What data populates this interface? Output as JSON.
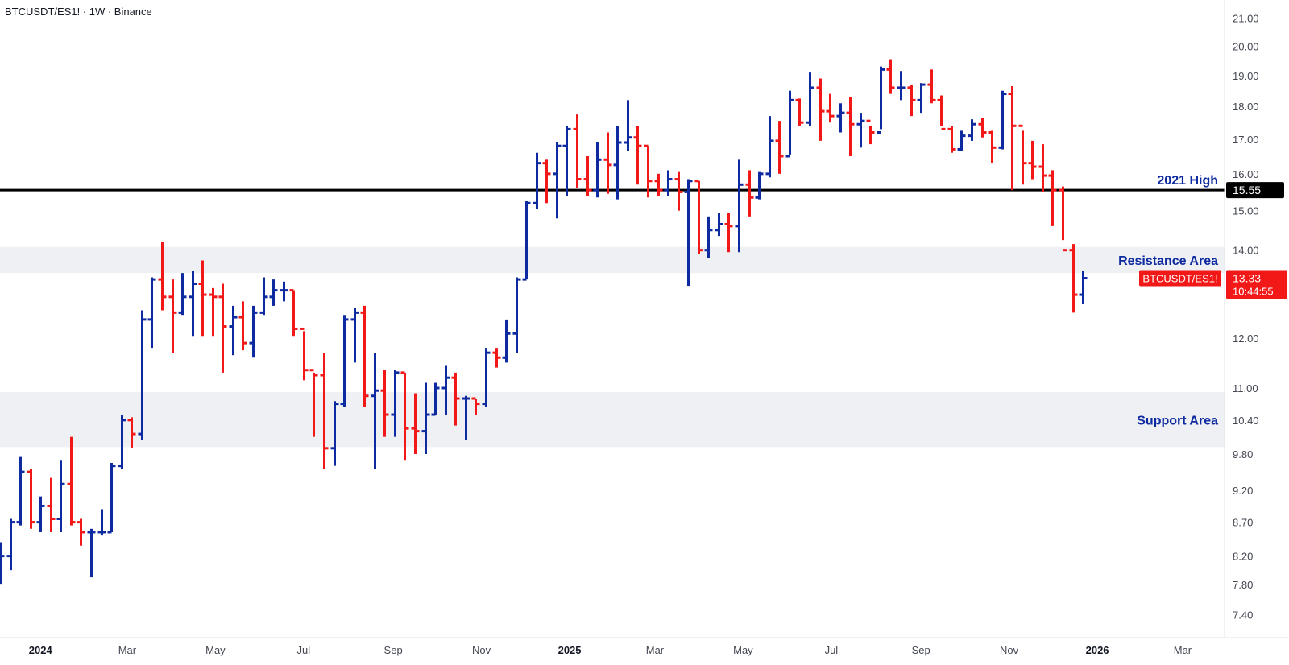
{
  "header": {
    "symbol_title": "BTCUSDT/ES1! · 1W · Binance"
  },
  "colors": {
    "up": "#0e2aa0",
    "down": "#f21818",
    "line": "#000000",
    "zone": "#eef0f3",
    "label_text": "#0e2aa0",
    "axis_text": "#434651"
  },
  "chart_data": {
    "type": "ohlc",
    "symbol": "BTCUSDT/ES1!",
    "interval": "1W",
    "exchange": "Binance",
    "y_scale": "log",
    "ylim": [
      7.2,
      21.5
    ],
    "y_ticks": [
      "21.00",
      "20.00",
      "19.00",
      "18.00",
      "17.00",
      "16.00",
      "15.00",
      "14.00",
      "12.00",
      "11.00",
      "10.40",
      "9.80",
      "9.20",
      "8.70",
      "8.20",
      "7.80",
      "7.40"
    ],
    "x_range": [
      "2023-12-04",
      "2026-03-30"
    ],
    "x_ticks": [
      {
        "label": "2024",
        "date": "2024-01-01",
        "bold": true
      },
      {
        "label": "Mar",
        "date": "2024-03-01",
        "bold": false
      },
      {
        "label": "May",
        "date": "2024-05-01",
        "bold": false
      },
      {
        "label": "Jul",
        "date": "2024-07-01",
        "bold": false
      },
      {
        "label": "Sep",
        "date": "2024-09-01",
        "bold": false
      },
      {
        "label": "Nov",
        "date": "2024-11-01",
        "bold": false
      },
      {
        "label": "2025",
        "date": "2025-01-01",
        "bold": true
      },
      {
        "label": "Mar",
        "date": "2025-03-01",
        "bold": false
      },
      {
        "label": "May",
        "date": "2025-05-01",
        "bold": false
      },
      {
        "label": "Jul",
        "date": "2025-07-01",
        "bold": false
      },
      {
        "label": "Sep",
        "date": "2025-09-01",
        "bold": false
      },
      {
        "label": "Nov",
        "date": "2025-11-01",
        "bold": false
      },
      {
        "label": "2026",
        "date": "2026-01-01",
        "bold": true
      },
      {
        "label": "Mar",
        "date": "2026-03-01",
        "bold": false
      }
    ],
    "first_bar_date": "2023-12-04",
    "bars": [
      [
        8.15,
        8.4,
        7.8,
        8.2
      ],
      [
        8.2,
        8.75,
        8.0,
        8.7
      ],
      [
        8.7,
        9.75,
        8.65,
        9.5
      ],
      [
        9.5,
        9.55,
        8.6,
        8.7
      ],
      [
        8.7,
        9.1,
        8.55,
        8.95
      ],
      [
        8.95,
        9.4,
        8.55,
        8.75
      ],
      [
        8.75,
        9.7,
        8.55,
        9.3
      ],
      [
        9.3,
        10.1,
        8.65,
        8.7
      ],
      [
        8.7,
        8.75,
        8.35,
        8.55
      ],
      [
        8.55,
        8.6,
        7.9,
        8.55
      ],
      [
        8.55,
        8.9,
        8.5,
        8.55
      ],
      [
        8.55,
        9.65,
        8.55,
        9.6
      ],
      [
        9.6,
        10.5,
        9.55,
        10.4
      ],
      [
        10.4,
        10.45,
        9.9,
        10.15
      ],
      [
        10.15,
        12.6,
        10.05,
        12.4
      ],
      [
        12.4,
        13.35,
        11.8,
        13.3
      ],
      [
        13.3,
        14.2,
        12.6,
        12.9
      ],
      [
        12.9,
        13.3,
        11.7,
        12.55
      ],
      [
        12.55,
        13.45,
        12.5,
        12.9
      ],
      [
        12.9,
        13.5,
        12.05,
        13.2
      ],
      [
        13.2,
        13.75,
        12.05,
        12.95
      ],
      [
        12.95,
        13.1,
        12.05,
        12.9
      ],
      [
        12.9,
        13.2,
        11.3,
        12.25
      ],
      [
        12.25,
        12.7,
        11.65,
        12.45
      ],
      [
        12.45,
        12.8,
        11.75,
        11.9
      ],
      [
        11.9,
        12.7,
        11.6,
        12.55
      ],
      [
        12.55,
        13.35,
        12.5,
        12.9
      ],
      [
        12.9,
        13.3,
        12.7,
        13.05
      ],
      [
        13.05,
        13.25,
        12.8,
        13.05
      ],
      [
        13.05,
        13.05,
        12.05,
        12.2
      ],
      [
        12.2,
        12.15,
        11.15,
        11.35
      ],
      [
        11.35,
        11.3,
        10.1,
        11.25
      ],
      [
        11.25,
        11.7,
        9.55,
        9.9
      ],
      [
        9.9,
        10.75,
        9.6,
        10.7
      ],
      [
        10.7,
        12.5,
        10.65,
        12.4
      ],
      [
        12.4,
        12.65,
        11.5,
        12.55
      ],
      [
        12.55,
        12.7,
        10.65,
        10.85
      ],
      [
        10.85,
        11.7,
        9.55,
        10.95
      ],
      [
        10.95,
        11.35,
        10.1,
        10.5
      ],
      [
        10.5,
        11.35,
        10.1,
        11.3
      ],
      [
        11.3,
        11.3,
        9.7,
        10.25
      ],
      [
        10.25,
        10.9,
        9.8,
        10.2
      ],
      [
        10.2,
        11.1,
        9.8,
        10.5
      ],
      [
        10.5,
        11.1,
        10.5,
        11.0
      ],
      [
        11.0,
        11.45,
        10.5,
        11.2
      ],
      [
        11.2,
        11.3,
        10.3,
        10.8
      ],
      [
        10.8,
        10.85,
        10.05,
        10.8
      ],
      [
        10.8,
        10.8,
        10.5,
        10.7
      ],
      [
        10.7,
        11.8,
        10.65,
        11.7
      ],
      [
        11.7,
        11.8,
        11.4,
        11.6
      ],
      [
        11.6,
        12.4,
        11.5,
        12.1
      ],
      [
        12.1,
        13.35,
        11.7,
        13.3
      ],
      [
        13.3,
        15.25,
        13.3,
        15.2
      ],
      [
        15.2,
        16.6,
        15.05,
        16.3
      ],
      [
        16.3,
        16.4,
        15.2,
        16.0
      ],
      [
        16.0,
        16.9,
        14.8,
        16.8
      ],
      [
        16.8,
        17.4,
        15.4,
        17.3
      ],
      [
        17.3,
        17.75,
        15.6,
        15.85
      ],
      [
        15.85,
        16.5,
        15.4,
        15.55
      ],
      [
        15.55,
        16.9,
        15.35,
        16.4
      ],
      [
        16.4,
        17.2,
        15.45,
        16.25
      ],
      [
        16.25,
        17.4,
        15.3,
        16.9
      ],
      [
        16.9,
        18.2,
        16.65,
        17.05
      ],
      [
        17.05,
        17.4,
        15.7,
        16.8
      ],
      [
        16.8,
        16.8,
        15.35,
        15.8
      ],
      [
        15.8,
        16.0,
        15.4,
        15.55
      ],
      [
        15.55,
        16.1,
        15.4,
        15.85
      ],
      [
        15.85,
        16.05,
        15.0,
        15.5
      ],
      [
        15.5,
        15.85,
        13.15,
        15.8
      ],
      [
        15.8,
        15.8,
        13.9,
        14.0
      ],
      [
        14.0,
        14.85,
        13.8,
        14.5
      ],
      [
        14.5,
        14.95,
        14.35,
        14.65
      ],
      [
        14.65,
        14.95,
        13.95,
        14.6
      ],
      [
        14.6,
        16.4,
        13.95,
        15.7
      ],
      [
        15.7,
        16.1,
        14.85,
        15.35
      ],
      [
        15.35,
        16.05,
        15.3,
        16.0
      ],
      [
        16.0,
        17.7,
        15.9,
        16.95
      ],
      [
        16.95,
        17.55,
        16.0,
        16.5
      ],
      [
        16.5,
        18.5,
        16.55,
        18.2
      ],
      [
        18.2,
        18.25,
        17.4,
        17.5
      ],
      [
        17.5,
        19.1,
        17.4,
        18.6
      ],
      [
        18.6,
        18.9,
        16.95,
        17.85
      ],
      [
        17.85,
        18.4,
        17.5,
        17.7
      ],
      [
        17.7,
        18.1,
        17.2,
        17.8
      ],
      [
        17.8,
        18.3,
        16.5,
        17.45
      ],
      [
        17.45,
        17.8,
        16.75,
        17.55
      ],
      [
        17.55,
        17.4,
        16.85,
        17.2
      ],
      [
        17.2,
        19.3,
        17.3,
        19.2
      ],
      [
        19.2,
        19.55,
        18.4,
        18.6
      ],
      [
        18.6,
        19.15,
        18.2,
        18.6
      ],
      [
        18.6,
        18.7,
        17.7,
        18.2
      ],
      [
        18.2,
        18.75,
        17.8,
        18.7
      ],
      [
        18.7,
        19.2,
        18.1,
        18.2
      ],
      [
        18.2,
        18.35,
        17.4,
        17.3
      ],
      [
        17.3,
        17.4,
        16.6,
        16.7
      ],
      [
        16.7,
        17.25,
        16.65,
        17.1
      ],
      [
        17.1,
        17.6,
        16.95,
        17.45
      ],
      [
        17.45,
        17.65,
        17.05,
        17.2
      ],
      [
        17.2,
        17.25,
        16.3,
        16.75
      ],
      [
        16.75,
        18.5,
        16.7,
        18.4
      ],
      [
        18.4,
        18.65,
        15.55,
        17.4
      ],
      [
        17.4,
        17.25,
        15.7,
        16.3
      ],
      [
        16.3,
        16.95,
        15.85,
        16.2
      ],
      [
        16.2,
        16.85,
        15.5,
        15.95
      ],
      [
        15.95,
        16.1,
        14.6,
        15.55
      ],
      [
        15.55,
        15.65,
        14.25,
        14.0
      ],
      [
        14.0,
        14.15,
        12.55,
        12.95
      ],
      [
        12.95,
        13.5,
        12.75,
        13.33
      ]
    ],
    "hlines": [
      {
        "name": "2021 High",
        "value": 15.55,
        "price_label": "15.55"
      }
    ],
    "zones": [
      {
        "name": "Resistance Area",
        "top": 14.08,
        "bottom": 13.45
      },
      {
        "name": "Support Area",
        "top": 10.92,
        "bottom": 9.92
      }
    ],
    "last_price": {
      "price": "13.33",
      "value": 13.33,
      "symbol": "BTCUSDT/ES1!",
      "countdown": "10:44:55"
    }
  }
}
